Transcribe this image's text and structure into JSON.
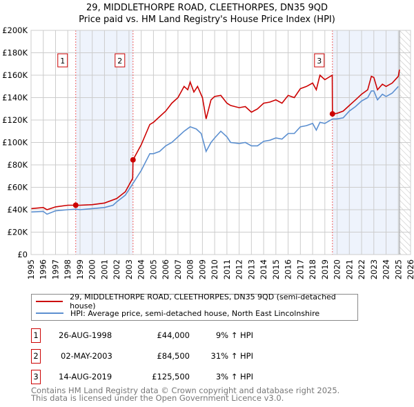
{
  "title_line1": "29, MIDDLETHORPE ROAD, CLEETHORPES, DN35 9QD",
  "title_line2": "Price paid vs. HM Land Registry's House Price Index (HPI)",
  "colors": {
    "property": "#cc0000",
    "hpi": "#5b8fd0",
    "shade": "#eef3fc",
    "grid": "#cccccc"
  },
  "chart_data": {
    "type": "line",
    "xlim": [
      1995,
      2026
    ],
    "ylim": [
      0,
      200000
    ],
    "x_ticks": [
      "1995",
      "1996",
      "1997",
      "1998",
      "1999",
      "2000",
      "2001",
      "2002",
      "2003",
      "2004",
      "2005",
      "2006",
      "2007",
      "2008",
      "2009",
      "2010",
      "2011",
      "2012",
      "2013",
      "2014",
      "2015",
      "2016",
      "2017",
      "2018",
      "2019",
      "2020",
      "2021",
      "2022",
      "2023",
      "2024",
      "2025",
      "2026"
    ],
    "y_ticks": [
      {
        "v": 0,
        "label": "£0"
      },
      {
        "v": 20000,
        "label": "£20K"
      },
      {
        "v": 40000,
        "label": "£40K"
      },
      {
        "v": 60000,
        "label": "£60K"
      },
      {
        "v": 80000,
        "label": "£80K"
      },
      {
        "v": 100000,
        "label": "£100K"
      },
      {
        "v": 120000,
        "label": "£120K"
      },
      {
        "v": 140000,
        "label": "£140K"
      },
      {
        "v": 160000,
        "label": "£160K"
      },
      {
        "v": 180000,
        "label": "£180K"
      },
      {
        "v": 200000,
        "label": "£200K"
      }
    ],
    "grid": true,
    "data_end": 2025.1,
    "series": [
      {
        "name": "29, MIDDLETHORPE ROAD, CLEETHORPES, DN35 9QD (semi-detached house)",
        "color": "#cc0000",
        "points": [
          [
            1995,
            41
          ],
          [
            1996,
            42
          ],
          [
            1996.3,
            40
          ],
          [
            1997,
            42.5
          ],
          [
            1998,
            44
          ],
          [
            1998.65,
            44
          ],
          [
            1999,
            44
          ],
          [
            2000,
            44.5
          ],
          [
            2001,
            46
          ],
          [
            2002,
            50
          ],
          [
            2002.7,
            56
          ],
          [
            2003.3,
            68
          ],
          [
            2003.33,
            84.5
          ],
          [
            2004,
            98
          ],
          [
            2004.7,
            116
          ],
          [
            2005,
            118
          ],
          [
            2005.5,
            123
          ],
          [
            2006,
            128
          ],
          [
            2006.5,
            135
          ],
          [
            2007,
            140
          ],
          [
            2007.5,
            150
          ],
          [
            2007.8,
            147
          ],
          [
            2008,
            154
          ],
          [
            2008.3,
            145
          ],
          [
            2008.6,
            150
          ],
          [
            2009,
            140
          ],
          [
            2009.3,
            121
          ],
          [
            2009.7,
            138
          ],
          [
            2010,
            141
          ],
          [
            2010.5,
            142
          ],
          [
            2011,
            135
          ],
          [
            2011.3,
            133
          ],
          [
            2012,
            131
          ],
          [
            2012.5,
            132
          ],
          [
            2013,
            127
          ],
          [
            2013.5,
            130
          ],
          [
            2014,
            135
          ],
          [
            2014.5,
            136
          ],
          [
            2015,
            138
          ],
          [
            2015.5,
            135
          ],
          [
            2016,
            142
          ],
          [
            2016.5,
            140
          ],
          [
            2017,
            148
          ],
          [
            2017.5,
            150
          ],
          [
            2018,
            153
          ],
          [
            2018.3,
            147
          ],
          [
            2018.6,
            160
          ],
          [
            2019,
            156
          ],
          [
            2019.6,
            160
          ],
          [
            2019.62,
            125.5
          ],
          [
            2020,
            126
          ],
          [
            2020.5,
            128
          ],
          [
            2021,
            133
          ],
          [
            2021.5,
            138
          ],
          [
            2022,
            143
          ],
          [
            2022.5,
            147
          ],
          [
            2022.8,
            159
          ],
          [
            2023,
            158
          ],
          [
            2023.3,
            147
          ],
          [
            2023.7,
            152
          ],
          [
            2024,
            150
          ],
          [
            2024.5,
            153
          ],
          [
            2025,
            159
          ],
          [
            2025.1,
            165
          ]
        ]
      },
      {
        "name": "HPI: Average price, semi-detached house, North East Lincolnshire",
        "color": "#5b8fd0",
        "points": [
          [
            1995,
            38
          ],
          [
            1996,
            38.5
          ],
          [
            1996.3,
            36
          ],
          [
            1997,
            39
          ],
          [
            1998,
            40
          ],
          [
            1998.65,
            40.5
          ],
          [
            1999,
            40
          ],
          [
            2000,
            41
          ],
          [
            2001,
            42
          ],
          [
            2001.7,
            44
          ],
          [
            2002,
            47
          ],
          [
            2002.7,
            53
          ],
          [
            2003.3,
            63
          ],
          [
            2004,
            75
          ],
          [
            2004.7,
            90
          ],
          [
            2005,
            90
          ],
          [
            2005.5,
            92
          ],
          [
            2006,
            97
          ],
          [
            2006.5,
            100
          ],
          [
            2007,
            105
          ],
          [
            2007.5,
            110
          ],
          [
            2008,
            114
          ],
          [
            2008.5,
            112
          ],
          [
            2008.9,
            108
          ],
          [
            2009.3,
            92
          ],
          [
            2009.7,
            100
          ],
          [
            2010,
            104
          ],
          [
            2010.5,
            110
          ],
          [
            2011,
            105
          ],
          [
            2011.3,
            100
          ],
          [
            2012,
            99
          ],
          [
            2012.5,
            100
          ],
          [
            2013,
            97
          ],
          [
            2013.5,
            97
          ],
          [
            2014,
            101
          ],
          [
            2014.5,
            102
          ],
          [
            2015,
            104
          ],
          [
            2015.5,
            103
          ],
          [
            2016,
            108
          ],
          [
            2016.5,
            108
          ],
          [
            2017,
            114
          ],
          [
            2017.5,
            115
          ],
          [
            2018,
            117
          ],
          [
            2018.3,
            111
          ],
          [
            2018.6,
            118
          ],
          [
            2019,
            117
          ],
          [
            2019.62,
            121
          ],
          [
            2020,
            121
          ],
          [
            2020.5,
            122
          ],
          [
            2021,
            128
          ],
          [
            2021.5,
            132
          ],
          [
            2022,
            137
          ],
          [
            2022.5,
            140
          ],
          [
            2022.8,
            146
          ],
          [
            2023,
            146
          ],
          [
            2023.3,
            138
          ],
          [
            2023.7,
            143
          ],
          [
            2024,
            141
          ],
          [
            2024.5,
            144
          ],
          [
            2025,
            150
          ]
        ]
      }
    ],
    "sales": [
      {
        "n": "1",
        "x": 1998.65,
        "price": 44000,
        "date": "26-AUG-1998",
        "price_label": "£44,000",
        "hpi": "9% ↑ HPI"
      },
      {
        "n": "2",
        "x": 2003.33,
        "price": 84500,
        "date": "02-MAY-2003",
        "price_label": "£84,500",
        "hpi": "31% ↑ HPI"
      },
      {
        "n": "3",
        "x": 2019.62,
        "price": 125500,
        "date": "14-AUG-2019",
        "price_label": "£125,500",
        "hpi": "3% ↑ HPI"
      }
    ]
  },
  "legend": {
    "property": "29, MIDDLETHORPE ROAD, CLEETHORPES, DN35 9QD (semi-detached house)",
    "hpi": "HPI: Average price, semi-detached house, North East Lincolnshire"
  },
  "footer_line1": "Contains HM Land Registry data © Crown copyright and database right 2025.",
  "footer_line2": "This data is licensed under the Open Government Licence v3.0."
}
